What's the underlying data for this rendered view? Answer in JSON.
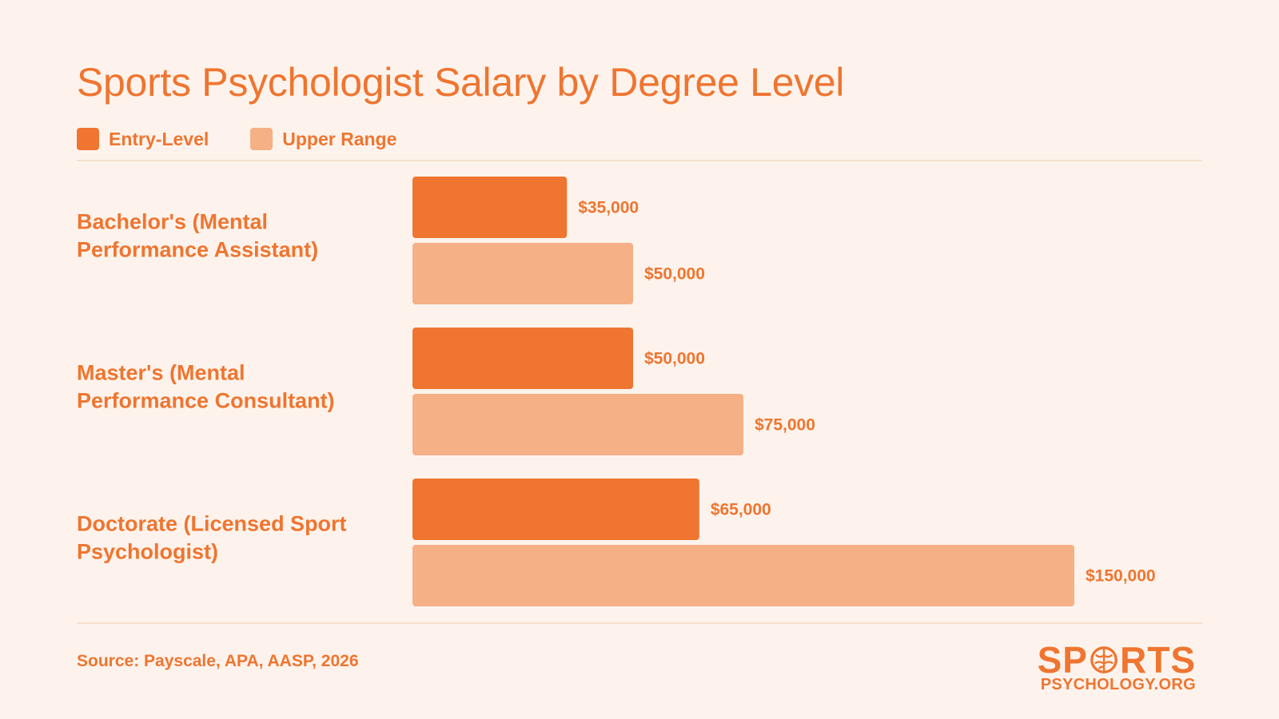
{
  "chart_data": {
    "type": "bar",
    "orientation": "horizontal",
    "title": "Sports Psychologist Salary by Degree Level",
    "categories": [
      "Bachelor's (Mental Performance Assistant)",
      "Master's (Mental Performance Consultant)",
      "Doctorate (Licensed Sport Psychologist)"
    ],
    "series": [
      {
        "name": "Entry-Level",
        "color": "#ef7530",
        "values": [
          35000,
          50000,
          65000
        ],
        "labels": [
          "$35,000",
          "$50,000",
          "$65,000"
        ]
      },
      {
        "name": "Upper Range",
        "color": "#f5b086",
        "values": [
          50000,
          75000,
          150000
        ],
        "labels": [
          "$50,000",
          "$75,000",
          "$150,000"
        ]
      }
    ],
    "xlim": [
      0,
      150000
    ],
    "grid": false,
    "legend": "top-left",
    "source": "Source: Payscale, APA, AASP, 2026"
  },
  "logo": {
    "top": "SPORTS",
    "bottom": "PSYCHOLOGY.ORG"
  },
  "colors": {
    "background": "#fdf3ec",
    "accent": "#ef7530",
    "light": "#f5b086",
    "rule": "#f7dfcf"
  }
}
